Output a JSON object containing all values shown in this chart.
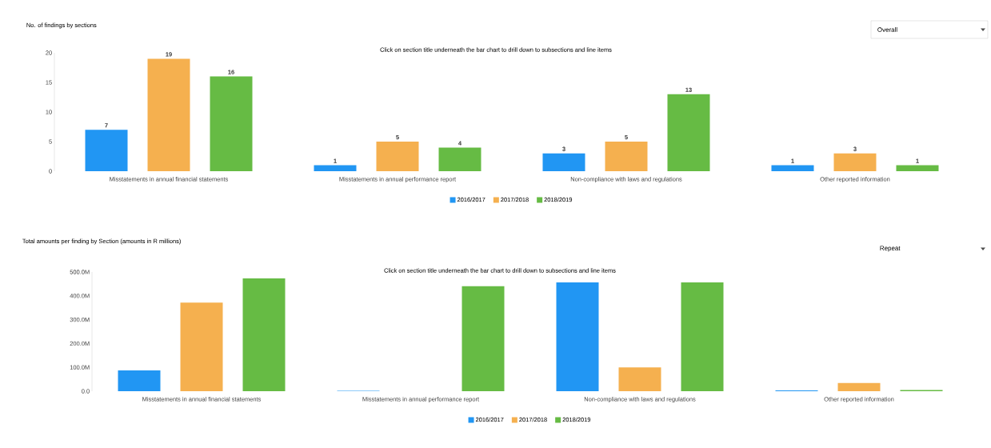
{
  "chart_data": [
    {
      "type": "bar",
      "title": "No. of findings by sections",
      "categories": [
        "Misstatements in annual financial statements",
        "Misstatements in annual performance report",
        "Non-compliance with laws and regulations",
        "Other reported information"
      ],
      "series": [
        {
          "name": "2016/2017",
          "color": "#2196f3",
          "values": [
            7,
            1,
            3,
            1
          ]
        },
        {
          "name": "2017/2018",
          "color": "#f5b04f",
          "values": [
            19,
            5,
            5,
            3
          ]
        },
        {
          "name": "2018/2019",
          "color": "#66bb44",
          "values": [
            16,
            4,
            13,
            1
          ]
        }
      ],
      "ylim": [
        0,
        20
      ],
      "yticks": [
        0,
        5,
        10,
        15,
        20
      ],
      "data_labels": true,
      "legend": "bottom",
      "annotations": [
        "Click on section title underneath the bar chart to drill down to subsections and line items",
        "Overall"
      ]
    },
    {
      "type": "bar",
      "title": "Total amounts per finding by Section (amounts in R millions)",
      "categories": [
        "Misstatements in annual financial statements",
        "Misstatements in annual performance report",
        "Non-compliance with laws and regulations",
        "Other reported information"
      ],
      "series": [
        {
          "name": "2016/2017",
          "color": "#2196f3",
          "values": [
            87,
            2,
            456,
            3
          ]
        },
        {
          "name": "2017/2018",
          "color": "#f5b04f",
          "values": [
            372,
            0,
            100,
            34
          ]
        },
        {
          "name": "2018/2019",
          "color": "#66bb44",
          "values": [
            473,
            440,
            456,
            5
          ]
        }
      ],
      "ylim": [
        0,
        500
      ],
      "yticks": [
        {
          "value": 0,
          "label": "0.0"
        },
        {
          "value": 100,
          "label": "100.0M"
        },
        {
          "value": 200,
          "label": "200.0M"
        },
        {
          "value": 300,
          "label": "300.0M"
        },
        {
          "value": 400,
          "label": "400.0M"
        },
        {
          "value": 500,
          "label": "500.0M"
        }
      ],
      "legend": "bottom",
      "annotations": [
        "Click on section title underneath the bar chart to drill down to subsections and line items",
        "Repeat"
      ]
    }
  ]
}
